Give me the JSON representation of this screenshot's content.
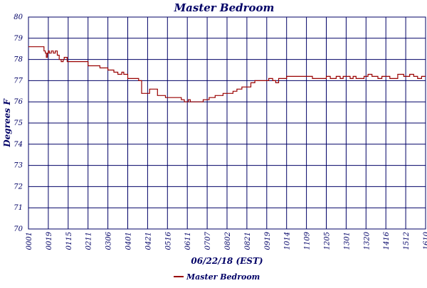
{
  "chart_data": {
    "type": "line",
    "title": "Master Bedroom",
    "xlabel": "06/22/18 (EST)",
    "ylabel": "Degrees F",
    "ylim": [
      70,
      80
    ],
    "yticks": [
      "80",
      "79",
      "78",
      "77",
      "76",
      "75",
      "74",
      "73",
      "72",
      "71",
      "70"
    ],
    "xticks": [
      "0001",
      "0019",
      "0115",
      "0211",
      "0306",
      "0401",
      "0421",
      "0516",
      "0611",
      "0707",
      "0802",
      "0821",
      "0919",
      "1014",
      "1109",
      "1205",
      "1301",
      "1320",
      "1416",
      "1512",
      "1610"
    ],
    "grid": true,
    "legend_position": "bottom",
    "colors": {
      "series": "#990000",
      "grid": "#000066",
      "text": "#000066",
      "background": "#ffffff"
    },
    "series": [
      {
        "name": "Master Bedroom",
        "x": [
          0,
          0.7,
          0.78,
          0.85,
          0.9,
          0.95,
          1.0,
          1.05,
          1.15,
          1.25,
          1.35,
          1.45,
          1.55,
          1.65,
          1.75,
          1.8,
          1.85,
          1.95,
          2.05,
          2.2,
          2.3,
          2.45,
          2.6,
          2.75,
          2.9,
          3.0,
          3.2,
          3.5,
          3.6,
          4.0,
          4.3,
          4.5,
          4.7,
          4.8,
          5.0,
          5.4,
          5.55,
          5.7,
          6.1,
          6.5,
          6.9,
          7.1,
          7.3,
          7.5,
          7.7,
          7.85,
          7.95,
          8.05,
          8.15,
          8.3,
          8.5,
          8.8,
          9.1,
          9.4,
          9.8,
          10.3,
          10.5,
          10.75,
          11.0,
          11.2,
          11.4,
          11.6,
          11.8,
          11.95,
          12.1,
          12.3,
          12.45,
          12.6,
          12.8,
          13.0,
          13.3,
          13.6,
          14.0,
          14.3,
          14.5,
          14.8,
          15.0,
          15.2,
          15.5,
          15.7,
          15.85,
          16.0,
          16.2,
          16.35,
          16.5,
          16.7,
          16.9,
          17.1,
          17.3,
          17.6,
          17.8,
          17.9,
          18.2,
          18.6,
          18.9,
          19.2,
          19.4,
          19.6,
          19.8,
          20.0
        ],
        "y": [
          78.6,
          78.6,
          78.4,
          78.3,
          78.1,
          78.3,
          78.4,
          78.3,
          78.4,
          78.3,
          78.4,
          78.2,
          78.0,
          77.9,
          78.0,
          78.1,
          78.1,
          77.9,
          77.9,
          77.9,
          77.9,
          77.9,
          77.9,
          77.9,
          77.9,
          77.7,
          77.7,
          77.7,
          77.6,
          77.5,
          77.4,
          77.3,
          77.4,
          77.3,
          77.1,
          77.1,
          77.0,
          76.4,
          76.6,
          76.3,
          76.2,
          76.2,
          76.2,
          76.2,
          76.1,
          76.0,
          76.0,
          76.1,
          76.0,
          76.0,
          76.0,
          76.1,
          76.2,
          76.3,
          76.4,
          76.5,
          76.6,
          76.7,
          76.7,
          76.9,
          77.0,
          77.0,
          77.0,
          77.0,
          77.1,
          77.0,
          76.9,
          77.1,
          77.1,
          77.2,
          77.2,
          77.2,
          77.2,
          77.1,
          77.1,
          77.1,
          77.2,
          77.1,
          77.2,
          77.1,
          77.2,
          77.2,
          77.1,
          77.2,
          77.1,
          77.1,
          77.2,
          77.3,
          77.2,
          77.1,
          77.2,
          77.2,
          77.1,
          77.3,
          77.2,
          77.3,
          77.2,
          77.1,
          77.2,
          77.2
        ]
      }
    ]
  }
}
